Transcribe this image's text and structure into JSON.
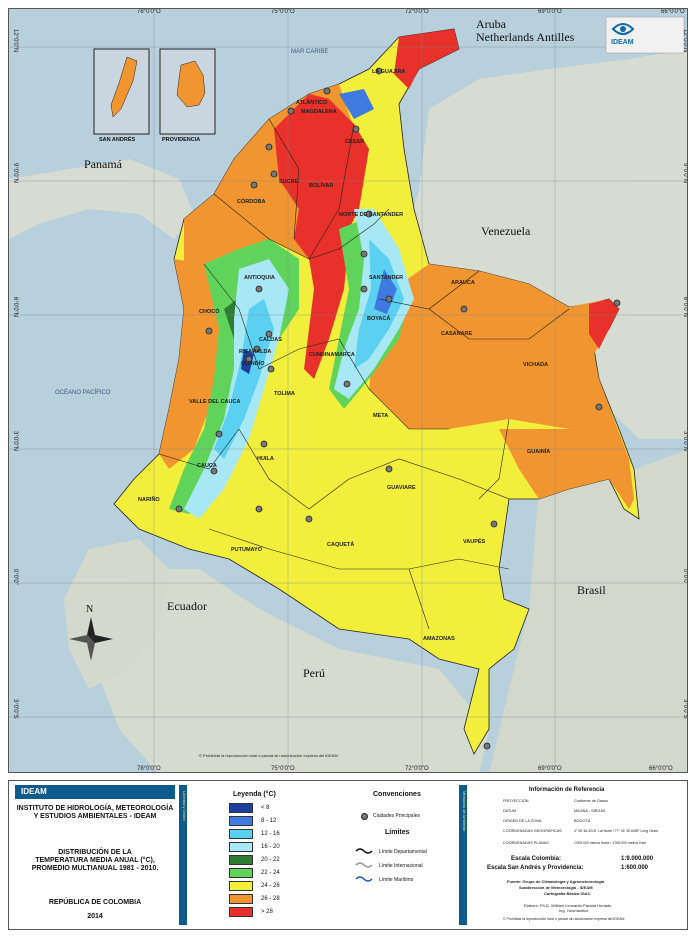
{
  "map": {
    "coords_top": [
      "78°0'0\"O",
      "75°0'0\"O",
      "72°0'0\"O",
      "69°0'0\"O",
      "66°0'0\"O"
    ],
    "coords_bottom": [
      "78°0'0\"O",
      "75°0'0\"O",
      "72°0'0\"O",
      "69°0'0\"O",
      "66°0'0\"O"
    ],
    "coords_left": [
      "12°0'0\"N",
      "9°0'0\"N",
      "6°0'0\"N",
      "3°0'0\"N",
      "0°0'0\"",
      "3°0'0\"S"
    ],
    "coords_right": [
      "12°0'0\"N",
      "9°0'0\"N",
      "6°0'0\"N",
      "3°0'0\"N",
      "0°0'0\"",
      "3°0'0\"S"
    ],
    "countries": {
      "aruba": "Aruba",
      "antilles": "Netherlands Antilles",
      "panama": "Panamá",
      "venezuela": "Venezuela",
      "ecuador": "Ecuador",
      "peru": "Perú",
      "brasil": "Brasil"
    },
    "seas": {
      "caribe": "MAR CARIBE",
      "pacifico": "OCÉANO PACÍFICO"
    },
    "departments": {
      "guajira": "LA GUAJIRA",
      "atlantico": "ATLÁNTICO",
      "magdalena": "MAGDALENA",
      "cesar": "CESAR",
      "sucre": "SUCRE",
      "bolivar": "BOLÍVAR",
      "cordoba": "CÓRDOBA",
      "nsantander": "NORTE DE SANTANDER",
      "antioquia": "ANTIOQUIA",
      "santander": "SANTANDER",
      "arauca": "ARAUCA",
      "choco": "CHOCÓ",
      "boyaca": "BOYACÁ",
      "casanare": "CASANARE",
      "caldas": "CALDAS",
      "risaralda": "RISARALDA",
      "cundinamarca": "CUNDINAMARCA",
      "vichada": "VICHADA",
      "quindio": "QUINDÍO",
      "tolima": "TOLIMA",
      "valle": "VALLE DEL CAUCA",
      "meta": "META",
      "guainia": "GUAINÍA",
      "huila": "HUILA",
      "cauca": "CAUCA",
      "guaviare": "GUAVIARE",
      "narino": "NARIÑO",
      "putumayo": "PUTUMAYO",
      "caqueta": "CAQUETÁ",
      "vaupes": "VAUPÉS",
      "amazonas": "AMAZONAS"
    },
    "insets": {
      "san_andres": "SAN ANDRÉS",
      "providencia": "PROVIDENCIA"
    },
    "north": "N",
    "logo_text": "IDEAM",
    "credit": "© Prohibida la reproducción total o parcial sin autorización expresa del IDEAM"
  },
  "footer": {
    "logo": "IDEAM",
    "institute": [
      "INSTITUTO DE HIDROLOGÍA, METEOROLOGÍA",
      "Y ESTUDIOS AMBIENTALES - IDEAM"
    ],
    "title": [
      "DISTRIBUCIÓN DE LA",
      "TEMPERATURA MEDIA ANUAL (°C),",
      "PROMEDIO MULTIANUAL 1981 - 2010."
    ],
    "country": "REPÚBLICA DE COLOMBIA",
    "year": "2014",
    "strip1": "Libertad y Orden",
    "strip2": "Ministerio de Ambiente",
    "legend_title": "Leyenda (°C)",
    "legend": [
      {
        "label": "< 8",
        "color": "#1d3fa0"
      },
      {
        "label": "8 - 12",
        "color": "#3f7ae0"
      },
      {
        "label": "12 - 16",
        "color": "#5cd0f0"
      },
      {
        "label": "16 - 20",
        "color": "#a8e8f4"
      },
      {
        "label": "20 - 22",
        "color": "#2e7d32"
      },
      {
        "label": "22 - 24",
        "color": "#5fd35a"
      },
      {
        "label": "24 - 26",
        "color": "#f3f03a"
      },
      {
        "label": "26 - 28",
        "color": "#f0952f"
      },
      {
        "label": "> 28",
        "color": "#e8312a"
      }
    ],
    "conv_title": "Convenciones",
    "conv_city": "Ciudades Principales",
    "limits_title": "Límites",
    "limits": [
      "Límite Departamental",
      "Límite Internacional",
      "Límite Marítimo"
    ],
    "ref_title": "Información de Referencia",
    "ref_rows": [
      {
        "k": "PROYECCIÓN",
        "v": "Conforme de Gauss"
      },
      {
        "k": "DATUM",
        "v": "MAGNA - SIRGAS"
      },
      {
        "k": "ORIGEN DE LA ZONA",
        "v": "BOGOTÁ"
      },
      {
        "k": "COORDENADAS GEOGRÁFICAS",
        "v": "4° 35' 46.3215\" Lat Norte / 77° 04' 39.0285\" Long Oeste"
      },
      {
        "k": "COORDENADAS PLANAS",
        "v": "1'000.000 metros Norte / 1'000.000 metros Este"
      }
    ],
    "scale_col_label": "Escala Colombia:",
    "scale_col": "1:9.000.000",
    "scale_sa_label": "Escala San Andrés y Providencia:",
    "scale_sa": "1:600.000",
    "source": [
      "Fuente: Grupo de Climatología y Agrometeorología",
      "Subdirección de Meteorología - IDEAM",
      "Cartografía Básica IGAC"
    ],
    "elaboro": [
      "Elaboró: Ph.D. William Leonardo Parada Hurtado",
      "Ing. Geomántico"
    ],
    "copyright": "© Prohibida la reproducción total o parcial sin autorización expresa del IDEAM"
  }
}
